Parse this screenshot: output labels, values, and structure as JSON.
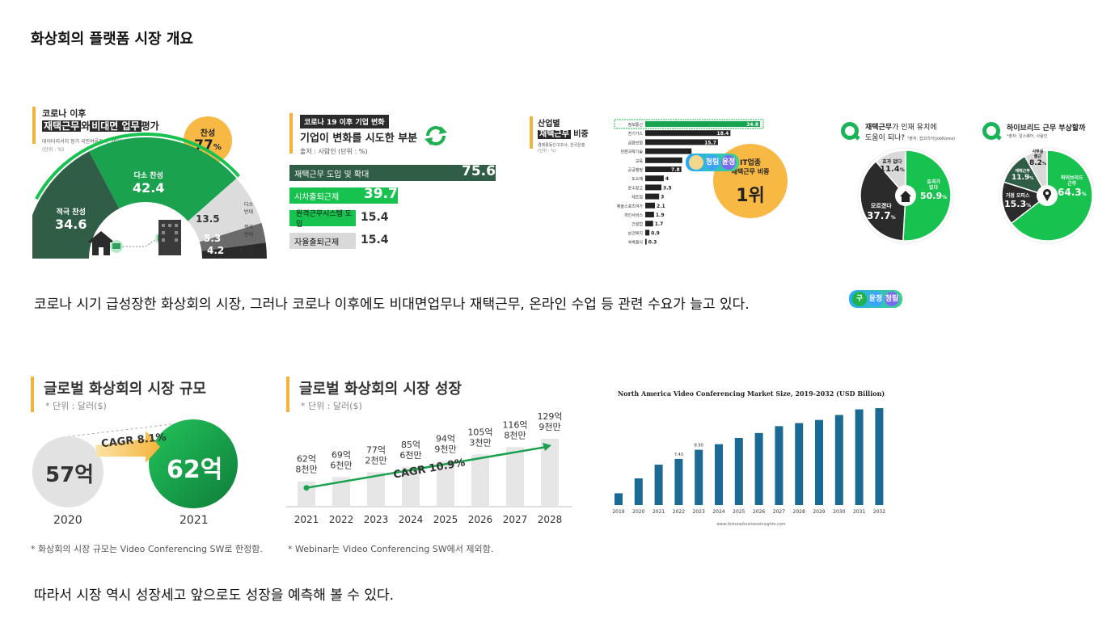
{
  "page": {
    "title": "화상회의 플랫폼 시장 개요",
    "caption1": "코로나 시기 급성장한 화상회의 시장, 그러나 코로나 이후에도 비대면업무나 재택근무, 온라인 수업 등 관련 수요가 늘고 있다.",
    "caption2": "따라서 시장 역시 성장세고 앞으로도 성장을 예측해 볼 수 있다.",
    "watermark": [
      "구",
      "윤정",
      "청림"
    ]
  },
  "panel1": {
    "head1": "코로나 이후",
    "head2a": "재택근무",
    "head2b": "와",
    "head2c": "비대면 업무",
    "head2d": "평가",
    "source": "데이터리서치 정기 국민여론조사, 2022.2.21",
    "unit": "(단위 : %)",
    "bubble_label": "찬성",
    "bubble_value": "77",
    "bubble_unit": "%"
  },
  "panel2": {
    "tag": "코로나 19 이후 기업 변화",
    "title": "기업이 변화를 시도한 부분",
    "source": "출처 : 사람인 (단위 : %)"
  },
  "panel3": {
    "head1": "산업별",
    "head2a": "재택근무",
    "head2b": "비중",
    "source": "경제활동인구조사, 한국은행",
    "unit": "(단위 : %)",
    "badge_line1": "IT업종",
    "badge_line2": "재택근무 비중",
    "badge_rank": "1위"
  },
  "panel4": {
    "title_a": "재택근무",
    "title_b": "가 인재 유치에",
    "title_c": "도움이 되나?",
    "source": "*출처: 잡코리아(JobKorea)"
  },
  "panel5": {
    "title": "하이브리드 근무 부상할까",
    "source": "*출처: 알스퀘어, 사람인"
  },
  "panel6": {
    "title": "글로벌 화상회의 시장 규모",
    "unit": "* 단위 : 달러($)",
    "v2020": "57억",
    "v2021": "62억",
    "y2020": "2020",
    "y2021": "2021",
    "cagr": "CAGR 8.1%",
    "note": "* 화상회의 시장 규모는 Video Conferencing SW로 한정함."
  },
  "panel7": {
    "title": "글로벌 화상회의 시장 성장",
    "unit": "* 단위 : 달러($)",
    "cagr": "CAGR 10.9%",
    "note": "* Webinar는 Video Conferencing SW에서 제외함."
  },
  "panel8": {
    "source": "www.fortunebusinessinsights.com"
  },
  "colors": {
    "green_dark": "#2f5d45",
    "green": "#1aa24f",
    "green_bright": "#17c34e",
    "grey": "#d9d9d9",
    "dark": "#2b2b2b",
    "orange": "#f2b33d",
    "blue": "#1a6a95"
  },
  "chart_data": [
    {
      "type": "pie",
      "title": "코로나 이후 재택근무와 비대면 업무 평가",
      "categories": [
        "적극 찬성",
        "다소 찬성",
        "다소 반대",
        "적극 반대",
        "잘 모름"
      ],
      "values": [
        34.6,
        42.4,
        13.5,
        5.3,
        4.2
      ],
      "labels": [
        "적극 찬성",
        "다소 찬성",
        "다소\n반대",
        "적극\n반대",
        "잘 모름"
      ]
    },
    {
      "type": "bar",
      "title": "기업이 변화를 시도한 부분",
      "categories": [
        "재택근무 도입 및 확대",
        "시차출퇴근제",
        "원격근무시스템 도입",
        "자율출퇴근제"
      ],
      "values": [
        75.6,
        39.7,
        15.4,
        15.4
      ]
    },
    {
      "type": "bar",
      "title": "산업별 재택근무 비중",
      "categories": [
        "정보통신",
        "전기가스",
        "금융보험",
        "전문과학기술",
        "교육",
        "공공행정",
        "도소매",
        "운수창고",
        "제조업",
        "예술스포츠여가",
        "개인서비스",
        "건설업",
        "보건복지",
        "숙박음식"
      ],
      "values": [
        24.8,
        18.4,
        15.7,
        10,
        8,
        7.8,
        4,
        3.5,
        3,
        2.1,
        1.9,
        1.7,
        0.9,
        0.3
      ],
      "labels": [
        "24.8",
        "18.4",
        "15.7",
        "",
        "",
        "7.8",
        "4",
        "3.5",
        "3",
        "2.1",
        "1.9",
        "1.7",
        "0.9",
        "0.3"
      ]
    },
    {
      "type": "pie",
      "title": "재택근무가 인재 유치에 도움이 되나?",
      "categories": [
        "효과가 있다",
        "모르겠다",
        "효과 없다"
      ],
      "labels": [
        "효과가\n있다",
        "모르겠다",
        "효과 없다"
      ],
      "values": [
        50.9,
        37.7,
        11.4
      ]
    },
    {
      "type": "pie",
      "title": "하이브리드 근무 부상할까",
      "categories": [
        "하이브리드 근무",
        "거점 오피스",
        "재택근무",
        "사무실 출근"
      ],
      "labels": [
        "하이브리드\n근무",
        "거점 오피스",
        "재택근무",
        "사무실\n출근"
      ],
      "values": [
        64.3,
        15.3,
        11.9,
        8.2
      ]
    },
    {
      "type": "bar",
      "title": "글로벌 화상회의 시장 규모",
      "categories": [
        "2020",
        "2021"
      ],
      "values": [
        5.7,
        6.2
      ],
      "labels": [
        "57억",
        "62억"
      ]
    },
    {
      "type": "bar",
      "title": "글로벌 화상회의 시장 성장",
      "categories": [
        "2021",
        "2022",
        "2023",
        "2024",
        "2025",
        "2026",
        "2027",
        "2028"
      ],
      "values": [
        6.28,
        6.96,
        7.72,
        8.56,
        9.49,
        10.53,
        11.68,
        12.99
      ],
      "labels": [
        "62억\n8천만",
        "69억\n6천만",
        "77억\n2천만",
        "85억\n6천만",
        "94억\n9천만",
        "105억\n3천만",
        "116억\n8천만",
        "129억\n9천만"
      ]
    },
    {
      "type": "bar",
      "title": "North America Video Conferencing Market Size, 2019-2032 (USD Billion)",
      "categories": [
        "2019",
        "2020",
        "2021",
        "2022",
        "2023",
        "2024",
        "2025",
        "2026",
        "2027",
        "2028",
        "2029",
        "2030",
        "2031",
        "2032"
      ],
      "values": [
        1.9,
        4.3,
        6.5,
        7.43,
        8.9,
        9.8,
        10.8,
        11.6,
        12.7,
        13.2,
        13.7,
        14.5,
        15.4,
        15.6
      ],
      "labels": [
        "",
        "",
        "",
        "7.43",
        "8.90",
        "",
        "",
        "",
        "",
        "",
        "",
        "",
        "",
        ""
      ]
    }
  ]
}
